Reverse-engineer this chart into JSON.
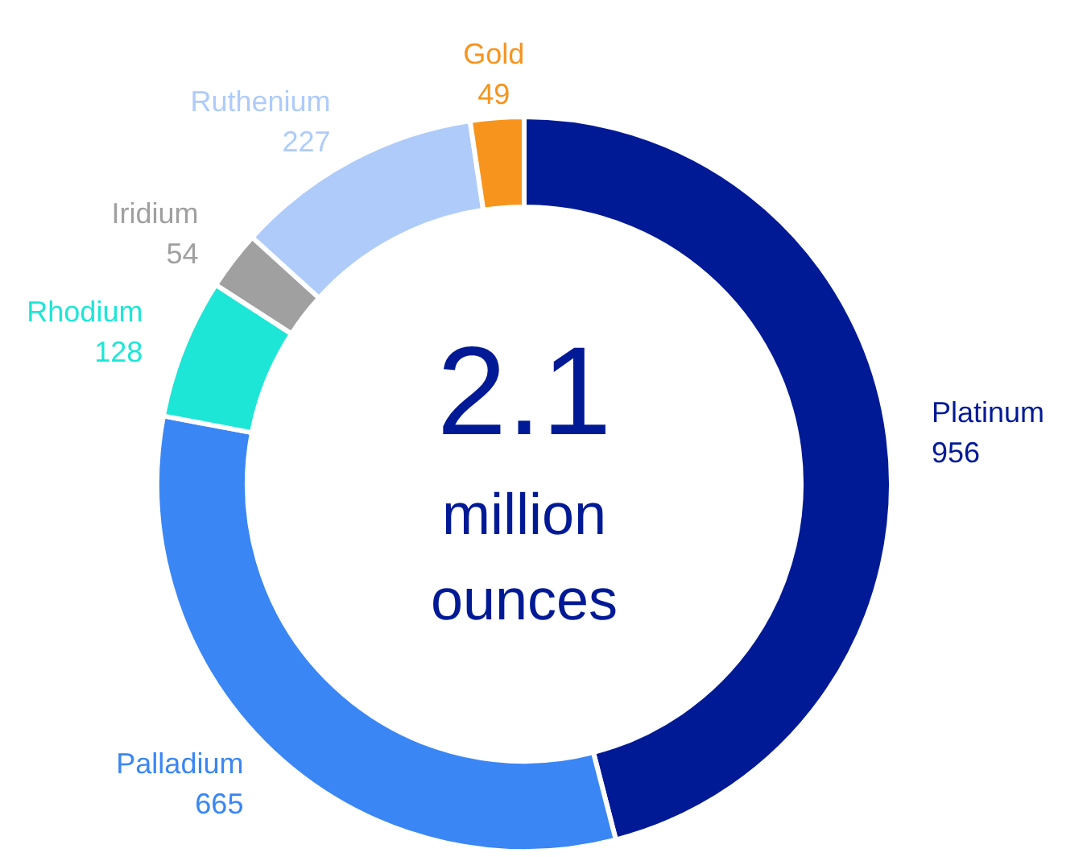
{
  "chart_data": {
    "type": "donut",
    "categories": [
      "Platinum",
      "Palladium",
      "Rhodium",
      "Iridium",
      "Ruthenium",
      "Gold"
    ],
    "values": [
      956,
      665,
      128,
      54,
      227,
      49
    ],
    "colors": [
      "#001a96",
      "#3a86f5",
      "#1de6d6",
      "#a0a0a0",
      "#aecbfa",
      "#f7941d"
    ],
    "data_labels": true,
    "annotations": [
      "2.1",
      "million ounces"
    ]
  }
}
